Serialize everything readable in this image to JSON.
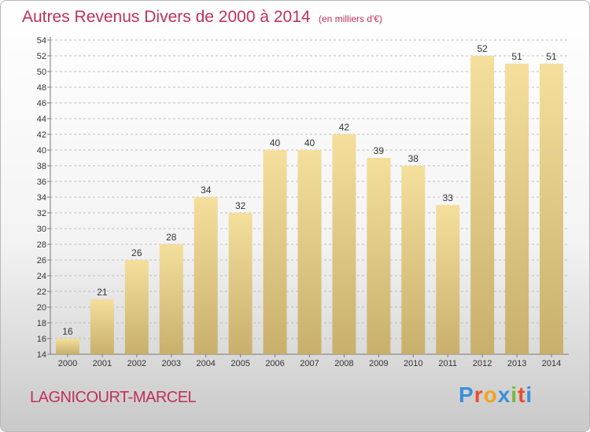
{
  "title": "Autres Revenus Divers de 2000 à 2014",
  "unit": "(en milliers d'€)",
  "commune": "LAGNICOURT-MARCEL",
  "logo": {
    "text": "Proxiti",
    "colors": [
      "#3a8fd8",
      "#e84e2c",
      "#f2a31b",
      "#3a8fd8",
      "#7ab83a",
      "#e84e2c",
      "#3a8fd8"
    ]
  },
  "colors": {
    "title": "#c0305a",
    "bar_light": "#f4df9c",
    "bar_dark": "#c8b06c",
    "grid": "#bdbdbd"
  },
  "chart_data": {
    "type": "bar",
    "categories": [
      "2000",
      "2001",
      "2002",
      "2003",
      "2004",
      "2005",
      "2006",
      "2007",
      "2008",
      "2009",
      "2010",
      "2011",
      "2012",
      "2013",
      "2014"
    ],
    "values": [
      16,
      21,
      26,
      28,
      34,
      32,
      40,
      40,
      42,
      39,
      38,
      33,
      52,
      51,
      51
    ],
    "ylim": [
      14,
      54
    ],
    "yticks": [
      14,
      16,
      18,
      20,
      22,
      24,
      26,
      28,
      30,
      32,
      34,
      36,
      38,
      40,
      42,
      44,
      46,
      48,
      50,
      52,
      54
    ],
    "grid": true,
    "legend": "none"
  }
}
